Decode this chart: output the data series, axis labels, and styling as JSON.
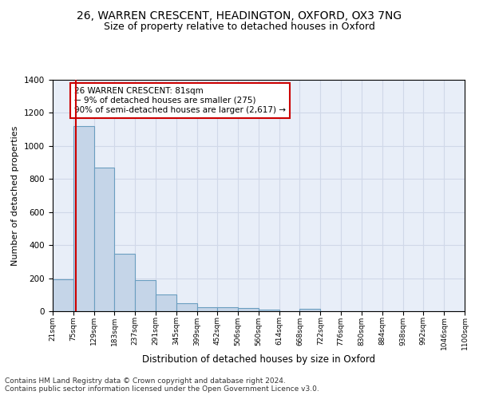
{
  "title_line1": "26, WARREN CRESCENT, HEADINGTON, OXFORD, OX3 7NG",
  "title_line2": "Size of property relative to detached houses in Oxford",
  "xlabel": "Distribution of detached houses by size in Oxford",
  "ylabel": "Number of detached properties",
  "bin_edges": [
    21,
    75,
    129,
    183,
    237,
    291,
    345,
    399,
    452,
    506,
    560,
    614,
    668,
    722,
    776,
    830,
    884,
    938,
    992,
    1046,
    1100
  ],
  "bar_heights": [
    195,
    1120,
    870,
    350,
    190,
    100,
    50,
    25,
    25,
    20,
    10,
    0,
    15,
    0,
    0,
    0,
    0,
    0,
    0,
    0
  ],
  "bar_color": "#c5d5e8",
  "bar_edgecolor": "#6a9ec0",
  "bar_linewidth": 0.8,
  "property_size": 81,
  "vline_color": "#cc0000",
  "annotation_text": "26 WARREN CRESCENT: 81sqm\n← 9% of detached houses are smaller (275)\n90% of semi-detached houses are larger (2,617) →",
  "annotation_box_color": "#cc0000",
  "ylim": [
    0,
    1400
  ],
  "yticks": [
    0,
    200,
    400,
    600,
    800,
    1000,
    1200,
    1400
  ],
  "grid_color": "#d0d8e8",
  "bg_color": "#e8eef8",
  "footer_text": "Contains HM Land Registry data © Crown copyright and database right 2024.\nContains public sector information licensed under the Open Government Licence v3.0.",
  "title_fontsize": 10,
  "subtitle_fontsize": 9,
  "annotation_fontsize": 7.5,
  "footer_fontsize": 6.5,
  "ylabel_fontsize": 8,
  "xlabel_fontsize": 8.5
}
